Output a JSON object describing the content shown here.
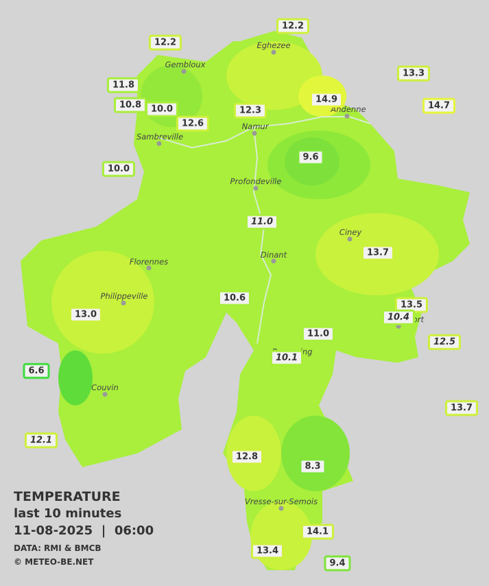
{
  "legend": {
    "title": "TEMPERATURE",
    "period": "last 10 minutes",
    "date": "11-08-2025",
    "separator": "|",
    "time": "06:00",
    "source": "DATA: RMI & BMCB",
    "copyright": "© METEO-BE.NET"
  },
  "towns": [
    "Eghezee",
    "Gembloux",
    "Andenne",
    "Namur",
    "Sambreville",
    "Profondeville",
    "Ciney",
    "Florennes",
    "Dinant",
    "Philippeville",
    "Rochefort",
    "Beauraing",
    "Couvin",
    "Vresse-sur-Semois"
  ],
  "stations": [
    "12.2",
    "12.2",
    "13.3",
    "11.8",
    "14.9",
    "14.7",
    "10.8",
    "10.0",
    "12.3",
    "12.6",
    "9.6",
    "10.0",
    "11.0",
    "13.7",
    "10.6",
    "13.5",
    "10.4",
    "13.0",
    "11.0",
    "12.5",
    "10.1",
    "6.6",
    "13.7",
    "12.1",
    "12.8",
    "8.3",
    "14.1",
    "13.4",
    "9.4"
  ]
}
